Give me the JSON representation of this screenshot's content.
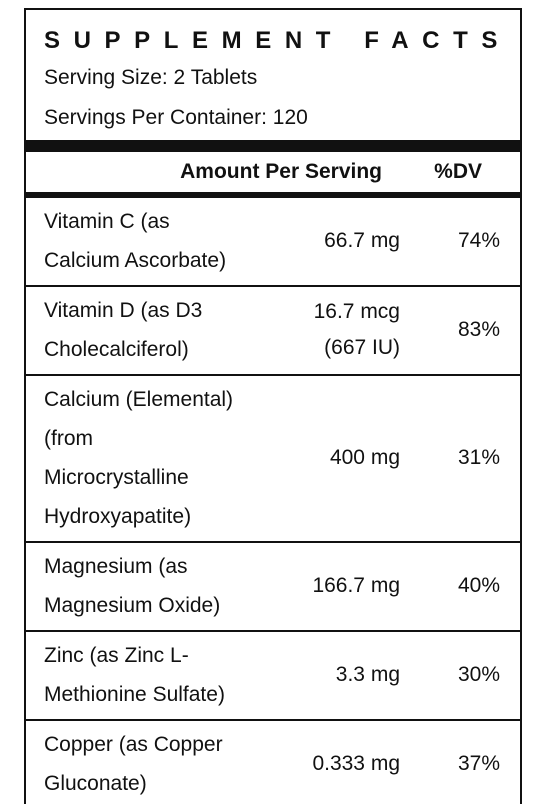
{
  "header": {
    "title": "SUPPLEMENT FACTS",
    "serving_size": "Serving Size: 2 Tablets",
    "servings_per_container": "Servings Per Container: 120"
  },
  "table": {
    "columns": [
      "Amount Per Serving",
      "%DV"
    ],
    "rows": [
      {
        "name": [
          "Vitamin C (as",
          "Calcium Ascorbate)"
        ],
        "amount": [
          "66.7 mg"
        ],
        "dv": "74%"
      },
      {
        "name": [
          "Vitamin D (as D3",
          "Cholecalciferol)"
        ],
        "amount": [
          "16.7 mcg",
          "(667 IU)"
        ],
        "dv": "83%"
      },
      {
        "name": [
          "Calcium (Elemental)",
          "(from",
          "Microcrystalline",
          "Hydroxyapatite)"
        ],
        "amount": [
          "400 mg"
        ],
        "dv": "31%"
      },
      {
        "name": [
          "Magnesium (as",
          "Magnesium Oxide)"
        ],
        "amount": [
          "166.7 mg"
        ],
        "dv": "40%"
      },
      {
        "name": [
          "Zinc (as Zinc L-",
          "Methionine Sulfate)"
        ],
        "amount": [
          "3.3 mg"
        ],
        "dv": "30%"
      },
      {
        "name": [
          "Copper (as Copper",
          "Gluconate)"
        ],
        "amount": [
          "0.333 mg"
        ],
        "dv": "37%"
      }
    ]
  }
}
